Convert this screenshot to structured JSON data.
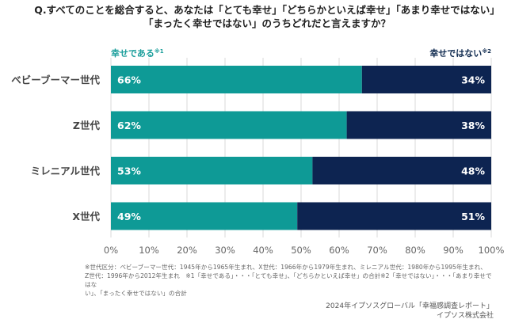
{
  "title": {
    "line1": "Q.すべてのことを総合すると、あなたは「とても幸せ」「どちらかといえば幸せ」「あまり幸せではない」",
    "line2": "「まったく幸せではない」のうちどれだと言えますか？"
  },
  "legend": {
    "left": {
      "label": "幸せである",
      "note": "※1"
    },
    "right": {
      "label": "幸せではない",
      "note": "※2"
    }
  },
  "colors": {
    "happy": "#0e9a96",
    "not_happy": "#0d2451",
    "grid": "#d9d9d9"
  },
  "chart_data": {
    "type": "bar",
    "orientation": "horizontal",
    "stacked": true,
    "title": "Q.すべてのことを総合すると、あなたは「とても幸せ」「どちらかといえば幸せ」「あまり幸せではない」「まったく幸せではない」のうちどれだと言えますか？",
    "categories": [
      "ベビーブーマー世代",
      "Z世代",
      "ミレニアル世代",
      "X世代"
    ],
    "series": [
      {
        "name": "幸せである※1",
        "values": [
          66,
          62,
          53,
          49
        ],
        "labels": [
          "66%",
          "62%",
          "53%",
          "49%"
        ]
      },
      {
        "name": "幸せではない※2",
        "values": [
          34,
          38,
          48,
          51
        ],
        "labels": [
          "34%",
          "38%",
          "48%",
          "51%"
        ]
      }
    ],
    "xlim": [
      0,
      100
    ],
    "xticks": [
      "0%",
      "10%",
      "20%",
      "30%",
      "40%",
      "50%",
      "60%",
      "70%",
      "80%",
      "90%",
      "100%"
    ],
    "grid": true,
    "legend_placement": "top"
  },
  "footnote": {
    "line1": "※世代区分：ベビーブーマー世代：1945年から1965年生まれ、X世代：1966年から1979年生まれ、ミレニアル世代：1980年から1995年生まれ、",
    "line2": "Z世代：1996年から2012年生まれ　※1「幸せである」・・・「とても幸せ」、「どちらかといえば幸せ」の合計※2「幸せではない」・・・「あまり幸せではな",
    "line3": "い」、「まったく幸せではない」の合計"
  },
  "source": {
    "line1": "2024年イプソスグローバル「幸福感調査レポート」",
    "line2": "イプソス株式会社"
  }
}
